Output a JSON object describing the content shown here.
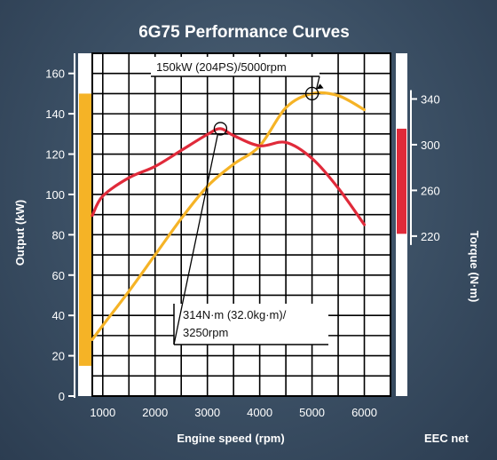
{
  "colors": {
    "power": "#f5b326",
    "torque": "#e02a3a",
    "grid": "#000000",
    "background": "#3a4e63",
    "text": "#ffffff"
  },
  "chart_data": {
    "type": "line",
    "title": "6G75 Performance Curves",
    "xlabel": "Engine speed (rpm)",
    "ylabel_left": "Output (kW)",
    "ylabel_right": "Torque (N·m)",
    "footnote": "EEC net",
    "xlim": [
      800,
      6500
    ],
    "ylim_left": [
      0,
      170
    ],
    "ylim_right": [
      80,
      380
    ],
    "x_ticks": [
      1000,
      2000,
      3000,
      4000,
      5000,
      6000
    ],
    "y_left_ticks": [
      0,
      20,
      40,
      60,
      80,
      100,
      120,
      140,
      160
    ],
    "y_right_ticks": [
      220,
      260,
      300,
      340
    ],
    "left_range_band": [
      15,
      150
    ],
    "right_range_band": [
      222,
      314
    ],
    "series": [
      {
        "name": "Output",
        "axis": "left",
        "x": [
          800,
          1000,
          1500,
          2000,
          2500,
          3000,
          3500,
          4000,
          4500,
          5000,
          5500,
          6000
        ],
        "y": [
          28,
          35,
          52,
          70,
          88,
          104,
          115,
          124,
          143,
          150,
          149,
          142
        ]
      },
      {
        "name": "Torque",
        "axis": "right",
        "x": [
          800,
          1000,
          1500,
          2000,
          2500,
          3000,
          3250,
          3500,
          4000,
          4500,
          5000,
          5500,
          6000
        ],
        "y": [
          238,
          255,
          271,
          281,
          295,
          309,
          314,
          308,
          299,
          302,
          288,
          262,
          230
        ]
      }
    ],
    "annotations": [
      {
        "text": "150kW (204PS)/5000rpm",
        "x": 5000,
        "y": 150,
        "axis": "left"
      },
      {
        "text_lines": [
          "314N·m (32.0kg·m)/",
          "3250rpm"
        ],
        "x": 3250,
        "y": 314,
        "axis": "right"
      }
    ]
  }
}
